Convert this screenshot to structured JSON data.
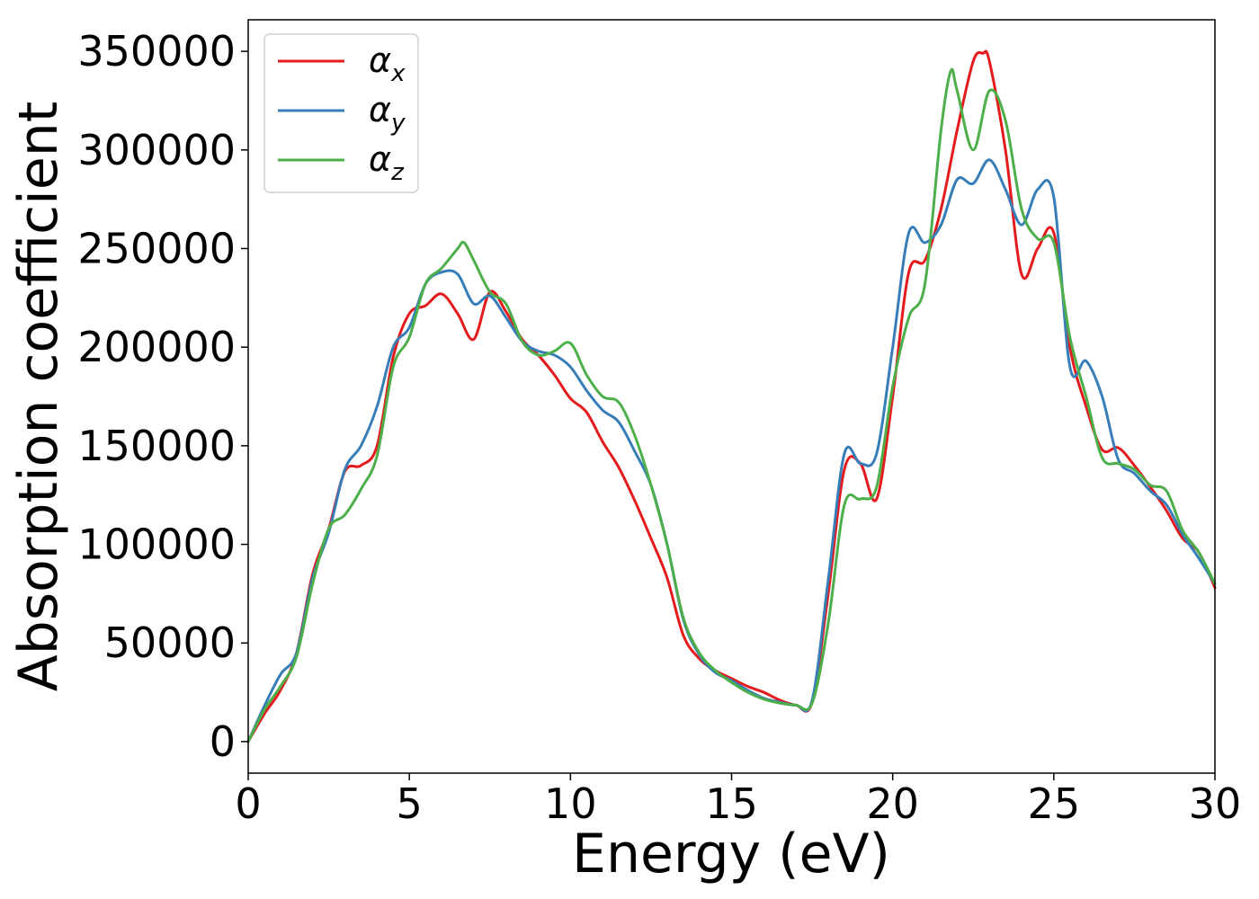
{
  "chart_data": {
    "type": "line",
    "xlabel": "Energy (eV)",
    "ylabel": "Absorption coefficient",
    "xlim": [
      0,
      30
    ],
    "ylim": [
      -16000,
      366000
    ],
    "xticks": [
      "0",
      "5",
      "10",
      "15",
      "20",
      "25",
      "30"
    ],
    "yticks": [
      "0",
      "50000",
      "100000",
      "150000",
      "200000",
      "250000",
      "300000",
      "350000"
    ],
    "grid": false,
    "legend_position": "upper-left",
    "series": [
      {
        "name": "α",
        "subscript": "x",
        "color": "#e41a1c",
        "x": [
          0,
          0.5,
          1.0,
          1.5,
          2.0,
          2.5,
          3.0,
          3.5,
          4.0,
          4.5,
          5.0,
          5.5,
          6.0,
          6.5,
          7.0,
          7.5,
          8.0,
          8.5,
          9.0,
          9.5,
          10.0,
          10.5,
          11.0,
          11.5,
          12.0,
          12.5,
          13.0,
          13.5,
          14.0,
          14.5,
          15.0,
          15.5,
          16.0,
          16.5,
          17.0,
          17.5,
          18.0,
          18.5,
          19.0,
          19.5,
          20.0,
          20.5,
          21.0,
          21.5,
          22.0,
          22.5,
          22.8,
          23.0,
          23.5,
          24.0,
          24.5,
          25.0,
          25.5,
          26.0,
          26.5,
          27.0,
          27.5,
          28.0,
          28.5,
          29.0,
          29.5,
          30.0
        ],
        "values": [
          0,
          14000,
          26000,
          45000,
          85000,
          108000,
          137000,
          140000,
          150000,
          195000,
          217000,
          221000,
          227000,
          217000,
          204000,
          228000,
          218000,
          204000,
          196000,
          186000,
          174000,
          167000,
          152000,
          139000,
          122000,
          103000,
          83000,
          54000,
          42000,
          36000,
          32000,
          28000,
          25000,
          21000,
          18500,
          20000,
          75000,
          138000,
          141000,
          123000,
          175000,
          238000,
          244000,
          270000,
          310000,
          345000,
          349000,
          345000,
          300000,
          237000,
          250000,
          258000,
          200000,
          170000,
          148000,
          149000,
          140000,
          129000,
          117000,
          103000,
          96000,
          78000
        ]
      },
      {
        "name": "α",
        "subscript": "y",
        "color": "#377eb8",
        "x": [
          0,
          0.5,
          1.0,
          1.5,
          2.0,
          2.5,
          3.0,
          3.5,
          4.0,
          4.5,
          5.0,
          5.5,
          6.0,
          6.5,
          7.0,
          7.5,
          8.0,
          8.5,
          9.0,
          9.5,
          10.0,
          10.5,
          11.0,
          11.5,
          12.0,
          12.5,
          13.0,
          13.5,
          14.0,
          14.5,
          15.0,
          15.5,
          16.0,
          16.5,
          17.0,
          17.5,
          18.0,
          18.5,
          19.0,
          19.5,
          20.0,
          20.5,
          21.0,
          21.5,
          22.0,
          22.5,
          23.0,
          23.5,
          24.0,
          24.5,
          25.0,
          25.5,
          26.0,
          26.5,
          27.0,
          27.5,
          28.0,
          28.5,
          29.0,
          29.5,
          30.0
        ],
        "values": [
          0,
          18000,
          34000,
          45000,
          83000,
          106000,
          138000,
          150000,
          170000,
          200000,
          210000,
          232000,
          238000,
          237000,
          222000,
          226000,
          215000,
          203000,
          198000,
          196000,
          190000,
          178000,
          168000,
          162000,
          147000,
          130000,
          100000,
          62000,
          44000,
          35000,
          31000,
          26000,
          22000,
          20000,
          18500,
          21000,
          82000,
          146000,
          141000,
          146000,
          200000,
          258000,
          253000,
          262000,
          285000,
          283000,
          295000,
          280000,
          262000,
          280000,
          276000,
          190000,
          193000,
          175000,
          143000,
          136000,
          127000,
          120000,
          105000,
          93000,
          80000
        ]
      },
      {
        "name": "α",
        "subscript": "z",
        "color": "#4daf4a",
        "x": [
          0,
          0.5,
          1.0,
          1.5,
          2.0,
          2.5,
          3.0,
          3.5,
          4.0,
          4.5,
          5.0,
          5.5,
          6.0,
          6.5,
          6.7,
          7.0,
          7.5,
          8.0,
          8.5,
          9.0,
          9.5,
          10.0,
          10.5,
          11.0,
          11.5,
          12.0,
          12.5,
          13.0,
          13.5,
          14.0,
          14.5,
          15.0,
          15.5,
          16.0,
          16.5,
          17.0,
          17.5,
          18.0,
          18.5,
          19.0,
          19.5,
          20.0,
          20.5,
          21.0,
          21.5,
          21.8,
          22.0,
          22.5,
          23.0,
          23.5,
          24.0,
          24.5,
          25.0,
          25.5,
          26.0,
          26.5,
          27.0,
          27.5,
          28.0,
          28.5,
          29.0,
          29.5,
          30.0
        ],
        "values": [
          0,
          16000,
          28000,
          43000,
          80000,
          108000,
          115000,
          128000,
          145000,
          190000,
          205000,
          232000,
          240000,
          250000,
          253000,
          244000,
          228000,
          222000,
          203000,
          196000,
          198000,
          202000,
          186000,
          175000,
          172000,
          155000,
          130000,
          100000,
          63000,
          45000,
          36000,
          30000,
          25000,
          21500,
          19500,
          18500,
          19500,
          60000,
          120000,
          123000,
          129000,
          180000,
          215000,
          232000,
          310000,
          340000,
          330000,
          300000,
          330000,
          315000,
          270000,
          255000,
          253000,
          205000,
          175000,
          144000,
          141000,
          138000,
          130000,
          127000,
          107000,
          96000,
          80000
        ]
      }
    ]
  }
}
